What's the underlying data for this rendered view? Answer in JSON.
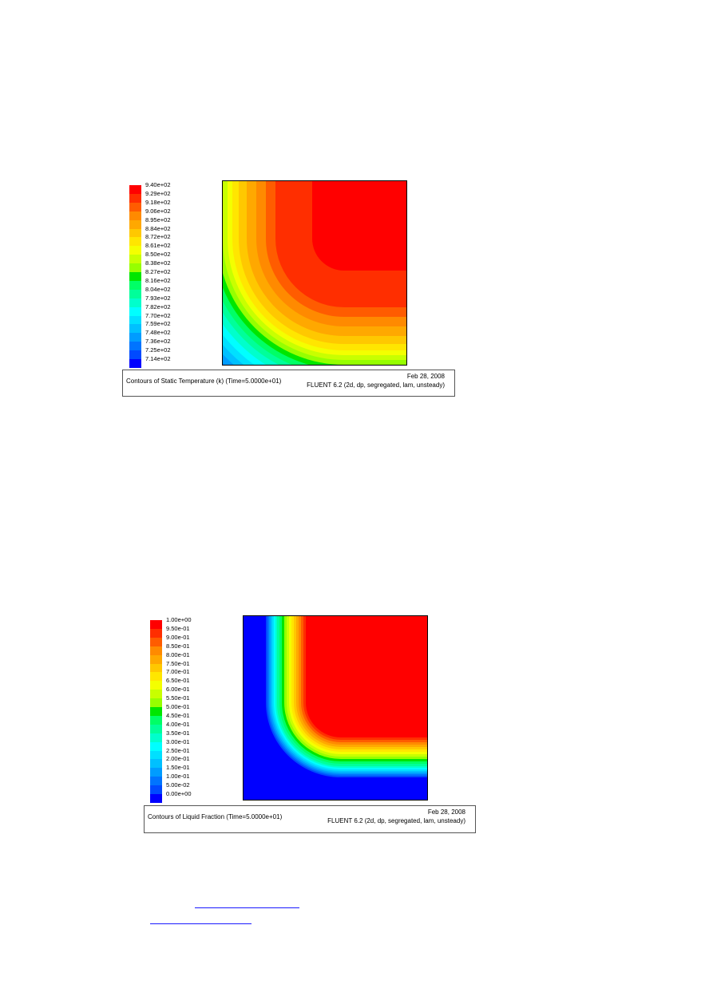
{
  "figures": [
    {
      "id": "temperature",
      "legend": {
        "labels": [
          "9.40e+02",
          "9.29e+02",
          "9.18e+02",
          "9.06e+02",
          "8.95e+02",
          "8.84e+02",
          "8.72e+02",
          "8.61e+02",
          "8.50e+02",
          "8.38e+02",
          "8.27e+02",
          "8.16e+02",
          "8.04e+02",
          "7.93e+02",
          "7.82e+02",
          "7.70e+02",
          "7.59e+02",
          "7.48e+02",
          "7.36e+02",
          "7.25e+02",
          "7.14e+02"
        ]
      },
      "caption": {
        "title": "Contours of Static Temperature (k)  (Time=5.0000e+01)",
        "date": "Feb 28, 2008",
        "solver": "FLUENT 6.2 (2d, dp, segregated, lam, unsteady)"
      }
    },
    {
      "id": "liquid-fraction",
      "legend": {
        "labels": [
          "1.00e+00",
          "9.50e-01",
          "9.00e-01",
          "8.50e-01",
          "8.00e-01",
          "7.50e-01",
          "7.00e-01",
          "6.50e-01",
          "6.00e-01",
          "5.50e-01",
          "5.00e-01",
          "4.50e-01",
          "4.00e-01",
          "3.50e-01",
          "3.00e-01",
          "2.50e-01",
          "2.00e-01",
          "1.50e-01",
          "1.00e-01",
          "5.00e-02",
          "0.00e+00"
        ]
      },
      "caption": {
        "title": "Contours of Liquid Fraction  (Time=5.0000e+01)",
        "date": "Feb 28, 2008",
        "solver": "FLUENT 6.2 (2d, dp, segregated, lam, unsteady)"
      }
    }
  ],
  "colormap": [
    "#ff0000",
    "#ff2e00",
    "#ff5c00",
    "#ff8a00",
    "#ffa800",
    "#ffc800",
    "#ffe600",
    "#f4ff00",
    "#c8ff00",
    "#96ff00",
    "#00e600",
    "#00ff66",
    "#00ff9a",
    "#00ffcc",
    "#00ffff",
    "#00e0ff",
    "#00c0ff",
    "#009cff",
    "#0074ff",
    "#004aff",
    "#0000ff"
  ]
}
